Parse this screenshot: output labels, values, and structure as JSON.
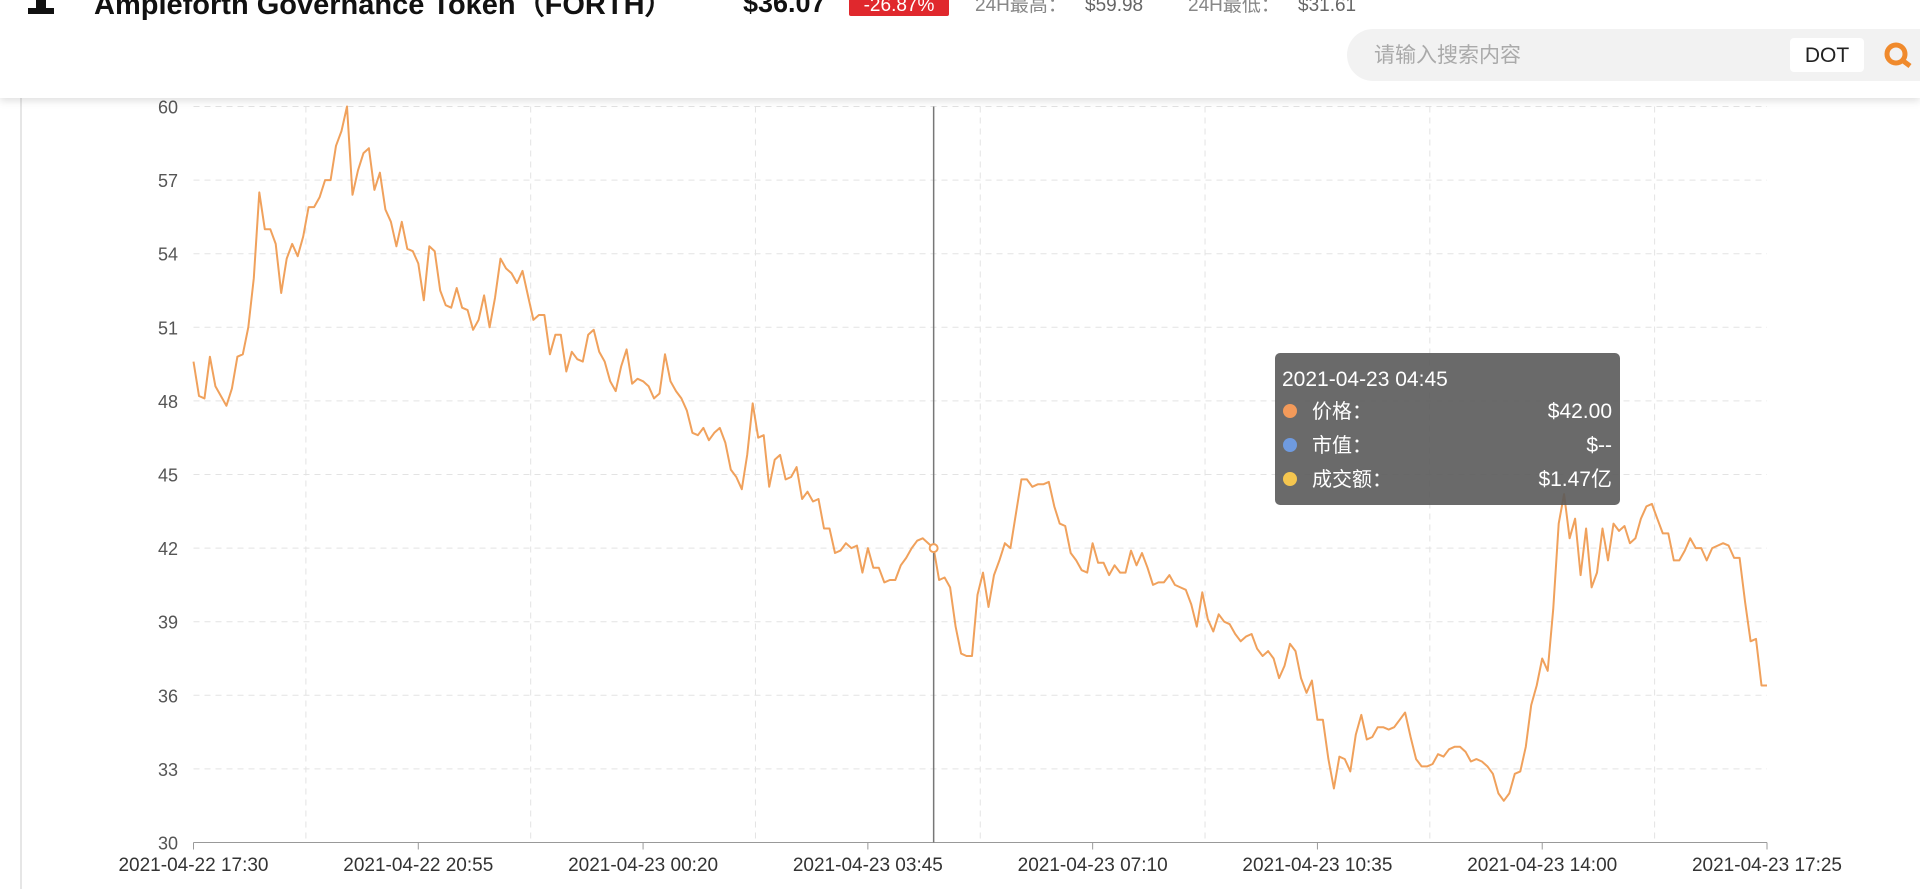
{
  "header": {
    "title": "Ampleforth Governance Token（FORTH）",
    "price": "$36.07",
    "change": "-26.87%",
    "high_label": "24H最高：",
    "high": "$59.98",
    "low_label": "24H最低：",
    "low": "$31.61",
    "search_placeholder": "请输入搜索内容",
    "search_button": "DOT"
  },
  "chart_data": {
    "type": "line",
    "color": "#f0a15c",
    "categories": [
      "2021-04-22 17:30",
      null,
      null,
      null,
      null,
      null,
      null,
      null,
      null,
      null,
      null,
      null,
      null,
      null,
      null,
      null,
      null,
      null,
      null,
      null,
      null,
      null,
      null,
      null,
      null,
      null,
      null,
      null,
      null,
      null,
      null,
      null,
      null,
      null,
      null,
      null,
      null,
      null,
      null,
      null,
      null,
      "2021-04-22 20:55",
      null,
      null,
      null,
      null,
      null,
      null,
      null,
      null,
      null,
      null,
      null,
      null,
      null,
      null,
      null,
      null,
      null,
      null,
      null,
      null,
      null,
      null,
      null,
      null,
      null,
      null,
      null,
      null,
      null,
      null,
      null,
      null,
      null,
      null,
      null,
      null,
      null,
      null,
      null,
      null,
      "2021-04-23 00:20",
      null,
      null,
      null,
      null,
      null,
      null,
      null,
      null,
      null,
      null,
      null,
      null,
      null,
      null,
      null,
      null,
      null,
      null,
      null,
      null,
      null,
      null,
      null,
      null,
      null,
      null,
      null,
      null,
      null,
      null,
      null,
      null,
      null,
      null,
      null,
      null,
      null,
      null,
      null,
      null,
      "2021-04-23 03:45",
      null,
      null,
      null,
      null,
      null,
      null,
      null,
      null,
      null,
      null,
      null,
      null,
      null,
      null,
      null,
      null,
      null,
      null,
      null,
      null,
      null,
      null,
      null,
      null,
      null,
      null,
      null,
      null,
      null,
      null,
      null,
      null,
      null,
      null,
      null,
      null,
      null,
      null,
      null,
      null,
      "2021-04-23 07:10",
      null,
      null,
      null,
      null,
      null,
      null,
      null,
      null,
      null,
      null,
      null,
      null,
      null,
      null,
      null,
      null,
      null,
      null,
      null,
      null,
      null,
      null,
      null,
      null,
      null,
      null,
      null,
      null,
      null,
      null,
      null,
      null,
      null,
      null,
      null,
      null,
      null,
      null,
      null,
      null,
      "2021-04-23 10:35",
      null,
      null,
      null,
      null,
      null,
      null,
      null,
      null,
      null,
      null,
      null,
      null,
      null,
      null,
      null,
      null,
      null,
      null,
      null,
      null,
      null,
      null,
      null,
      null,
      null,
      null,
      null,
      null,
      null,
      null,
      null,
      null,
      null,
      null,
      null,
      null,
      null,
      null,
      null,
      null,
      "2021-04-23 14:00",
      null,
      null,
      null,
      null,
      null,
      null,
      null,
      null,
      null,
      null,
      null,
      null,
      null,
      null,
      null,
      null,
      null,
      null,
      null,
      null,
      null,
      null,
      null,
      null,
      null,
      null,
      null,
      null,
      null,
      null,
      null,
      null,
      null,
      null,
      null,
      null,
      null,
      null,
      null,
      null,
      "2021-04-23 17:25"
    ],
    "values": [
      49.6,
      48.2,
      48.1,
      49.8,
      48.6,
      48.2,
      47.8,
      48.5,
      49.8,
      49.9,
      51.0,
      53.0,
      56.5,
      55.0,
      55.0,
      54.4,
      52.4,
      53.8,
      54.4,
      53.9,
      54.7,
      55.9,
      55.9,
      56.3,
      57.0,
      57.0,
      58.4,
      59.0,
      60.0,
      56.4,
      57.4,
      58.1,
      58.3,
      56.6,
      57.3,
      55.8,
      55.3,
      54.3,
      55.3,
      54.2,
      54.1,
      53.6,
      52.1,
      54.3,
      54.1,
      52.5,
      51.9,
      51.8,
      52.6,
      51.8,
      51.7,
      50.9,
      51.3,
      52.3,
      51.0,
      52.2,
      53.8,
      53.4,
      53.2,
      52.8,
      53.3,
      52.3,
      51.3,
      51.5,
      51.5,
      49.9,
      50.7,
      50.7,
      49.2,
      50.0,
      49.7,
      49.6,
      50.7,
      50.9,
      50.0,
      49.6,
      48.8,
      48.4,
      49.4,
      50.1,
      48.7,
      48.9,
      48.8,
      48.6,
      48.1,
      48.3,
      49.9,
      48.8,
      48.4,
      48.1,
      47.6,
      46.7,
      46.6,
      46.9,
      46.4,
      46.7,
      46.9,
      46.3,
      45.2,
      44.9,
      44.4,
      45.8,
      47.9,
      46.5,
      46.6,
      44.5,
      45.6,
      45.8,
      44.8,
      44.9,
      45.3,
      44.0,
      44.3,
      43.9,
      44.0,
      42.8,
      42.8,
      41.8,
      41.9,
      42.2,
      42.0,
      42.1,
      41.0,
      42.0,
      41.2,
      41.2,
      40.6,
      40.7,
      40.7,
      41.3,
      41.6,
      42.0,
      42.3,
      42.4,
      42.2,
      42.0,
      40.7,
      40.8,
      40.4,
      38.8,
      37.7,
      37.6,
      37.6,
      40.1,
      41.0,
      39.6,
      40.9,
      41.5,
      42.2,
      42.0,
      43.4,
      44.8,
      44.8,
      44.5,
      44.6,
      44.6,
      44.7,
      43.7,
      43.0,
      42.9,
      41.8,
      41.5,
      41.1,
      41.0,
      42.2,
      41.4,
      41.4,
      40.9,
      41.3,
      41.0,
      41.0,
      41.9,
      41.3,
      41.8,
      41.2,
      40.5,
      40.6,
      40.6,
      40.9,
      40.5,
      40.4,
      40.3,
      39.7,
      38.8,
      40.2,
      39.1,
      38.6,
      39.3,
      39.0,
      38.9,
      38.5,
      38.2,
      38.4,
      38.5,
      37.9,
      37.6,
      37.8,
      37.5,
      36.7,
      37.2,
      38.1,
      37.8,
      36.7,
      36.1,
      36.6,
      35.0,
      35.0,
      33.4,
      32.2,
      33.5,
      33.4,
      32.9,
      34.4,
      35.2,
      34.2,
      34.3,
      34.7,
      34.7,
      34.6,
      34.7,
      35.0,
      35.3,
      34.3,
      33.4,
      33.1,
      33.1,
      33.2,
      33.6,
      33.5,
      33.8,
      33.9,
      33.9,
      33.7,
      33.3,
      33.4,
      33.3,
      33.1,
      32.8,
      32.0,
      31.7,
      32.0,
      32.8,
      32.9,
      33.9,
      35.6,
      36.4,
      37.5,
      37.0,
      39.5,
      43.0,
      44.2,
      42.4,
      43.2,
      40.9,
      42.8,
      40.4,
      41.0,
      42.8,
      41.5,
      43.0,
      42.7,
      42.9,
      42.2,
      42.4,
      43.2,
      43.7,
      43.8,
      43.2,
      42.6,
      42.6,
      41.5,
      41.5,
      41.9,
      42.4,
      42.0,
      42.0,
      41.5,
      42.0,
      42.1,
      42.2,
      42.1,
      41.6,
      41.6,
      39.8,
      38.2,
      38.3,
      36.4,
      36.4
    ],
    "ylim": [
      30,
      60
    ],
    "yticks": [
      30,
      33,
      36,
      39,
      42,
      45,
      48,
      51,
      54,
      57,
      60
    ],
    "grid": true,
    "tooltip": {
      "title": "2021-04-23 04:45",
      "items": [
        {
          "name": "价格：",
          "value": "$42.00",
          "color": "#f39a5a"
        },
        {
          "name": "市值：",
          "value": "$--",
          "color": "#6f9be0"
        },
        {
          "name": "成交额：",
          "value": "$1.47亿",
          "color": "#f5c64f"
        }
      ]
    }
  }
}
